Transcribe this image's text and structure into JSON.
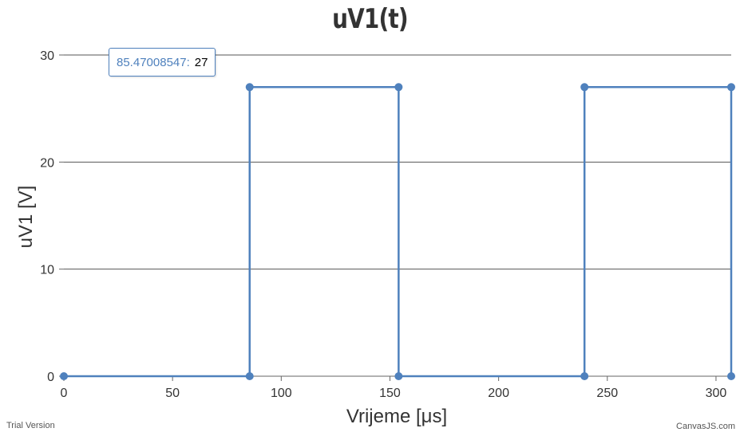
{
  "chart_data": {
    "type": "line",
    "title": "uV1(t)",
    "xlabel": "Vrijeme [μs]",
    "ylabel": "uV1 [V]",
    "xlim": [
      0,
      307
    ],
    "ylim": [
      0,
      30
    ],
    "x_ticks": [
      "0",
      "50",
      "100",
      "150",
      "200",
      "250",
      "300"
    ],
    "y_ticks": [
      "0",
      "10",
      "20",
      "30"
    ],
    "grid": "horizontal",
    "series": [
      {
        "color": "#4f81bd",
        "x": [
          0,
          85.47,
          85.47,
          154,
          154,
          239.5,
          239.5,
          307,
          307
        ],
        "y": [
          0,
          0,
          27,
          27,
          0,
          0,
          27,
          27,
          0
        ]
      }
    ]
  },
  "tooltip": {
    "x_value": "85.47008547",
    "separator": ":",
    "y_value": "27"
  },
  "footer": {
    "left": "Trial Version",
    "right": "CanvasJS.com"
  }
}
